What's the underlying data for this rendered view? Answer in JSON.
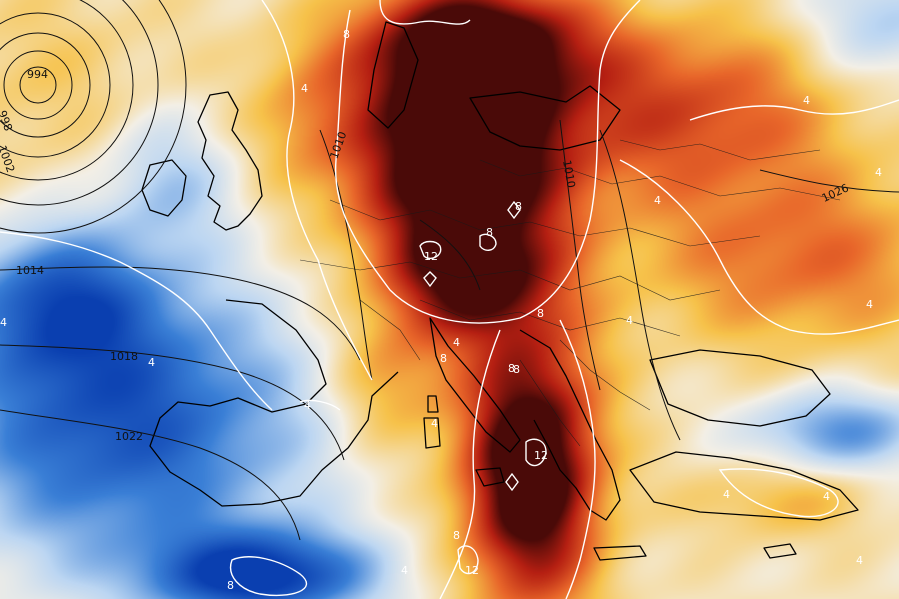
{
  "map": {
    "colors": {
      "cold_strong": "#0a3fb0",
      "cold": "#3a7fd6",
      "cool": "#bcd6f2",
      "neutral": "#f3efe6",
      "warm": "#f6c24a",
      "hot": "#e8662a",
      "very_hot": "#b51f12",
      "extreme": "#4a0a08",
      "contour_anomaly": "#ffffff",
      "contour_pressure": "#111111",
      "coastline": "#000000"
    },
    "pressure_labels": [
      "994",
      "998",
      "1002",
      "1010",
      "1014",
      "1018",
      "1022",
      "1026",
      "1010"
    ],
    "anomaly_labels": [
      "8",
      "4",
      "4",
      "12",
      "8",
      "8",
      "8",
      "8",
      "4",
      "4",
      "4",
      "4",
      "4",
      "8",
      "12",
      "12",
      "8",
      "8",
      "4",
      "4",
      "4",
      "4",
      "4",
      "4",
      "8",
      "4",
      "4"
    ]
  }
}
